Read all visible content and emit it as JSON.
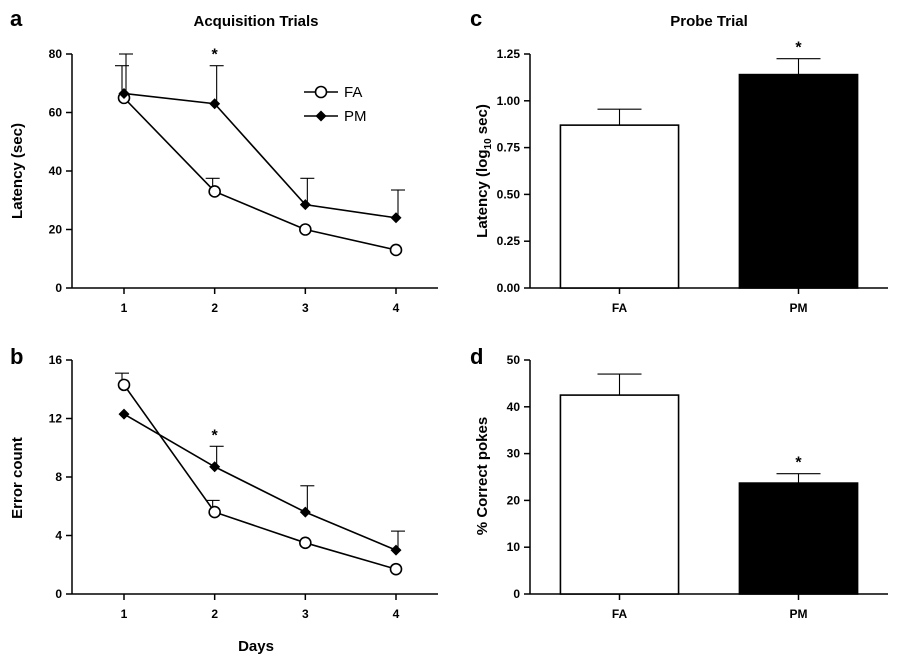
{
  "chart_data": [
    {
      "panel": "a",
      "type": "line",
      "title": "Acquisition Trials",
      "xlabel": "",
      "ylabel": "Latency (sec)",
      "categories": [
        "1",
        "2",
        "3",
        "4"
      ],
      "ylim": [
        0,
        80
      ],
      "yticks": [
        "0",
        "20",
        "40",
        "60",
        "80"
      ],
      "legend": {
        "position": "top-right"
      },
      "series": [
        {
          "name": "FA",
          "marker": "open-circle",
          "values": [
            65,
            33,
            20,
            13
          ],
          "err": [
            11,
            4.5,
            0,
            0
          ]
        },
        {
          "name": "PM",
          "marker": "filled-diamond",
          "values": [
            66.5,
            63,
            28.5,
            24
          ],
          "err": [
            13.5,
            13,
            9,
            9.5
          ]
        }
      ],
      "annotations": [
        {
          "text": "*",
          "category": "2"
        }
      ]
    },
    {
      "panel": "b",
      "type": "line",
      "title": "",
      "xlabel": "Days",
      "ylabel": "Error count",
      "categories": [
        "1",
        "2",
        "3",
        "4"
      ],
      "ylim": [
        0,
        16
      ],
      "yticks": [
        "0",
        "4",
        "8",
        "12",
        "16"
      ],
      "series": [
        {
          "name": "FA",
          "marker": "open-circle",
          "values": [
            14.3,
            5.6,
            3.5,
            1.7
          ],
          "err": [
            0.8,
            0.8,
            0,
            0
          ]
        },
        {
          "name": "PM",
          "marker": "filled-diamond",
          "values": [
            12.3,
            8.7,
            5.6,
            3.0
          ],
          "err": [
            0,
            1.4,
            1.8,
            1.3
          ]
        }
      ],
      "annotations": [
        {
          "text": "*",
          "category": "2"
        }
      ]
    },
    {
      "panel": "c",
      "type": "bar",
      "title": "Probe Trial",
      "xlabel": "",
      "ylabel_main": "Latency (log",
      "ylabel_sub": "10",
      "ylabel_end": " sec)",
      "categories": [
        "FA",
        "PM"
      ],
      "values": [
        0.87,
        1.14
      ],
      "err": [
        0.085,
        0.085
      ],
      "fills": [
        "#ffffff",
        "#000000"
      ],
      "ylim": [
        0,
        1.25
      ],
      "yticks": [
        "0.00",
        "0.25",
        "0.50",
        "0.75",
        "1.00",
        "1.25"
      ],
      "annotations": [
        {
          "text": "*",
          "category": "PM"
        }
      ]
    },
    {
      "panel": "d",
      "type": "bar",
      "title": "",
      "xlabel": "",
      "ylabel": "% Correct pokes",
      "categories": [
        "FA",
        "PM"
      ],
      "values": [
        42.5,
        23.7
      ],
      "err": [
        4.5,
        2.0
      ],
      "fills": [
        "#ffffff",
        "#000000"
      ],
      "ylim": [
        0,
        50
      ],
      "yticks": [
        "0",
        "10",
        "20",
        "30",
        "40",
        "50"
      ],
      "annotations": [
        {
          "text": "*",
          "category": "PM"
        }
      ]
    }
  ]
}
